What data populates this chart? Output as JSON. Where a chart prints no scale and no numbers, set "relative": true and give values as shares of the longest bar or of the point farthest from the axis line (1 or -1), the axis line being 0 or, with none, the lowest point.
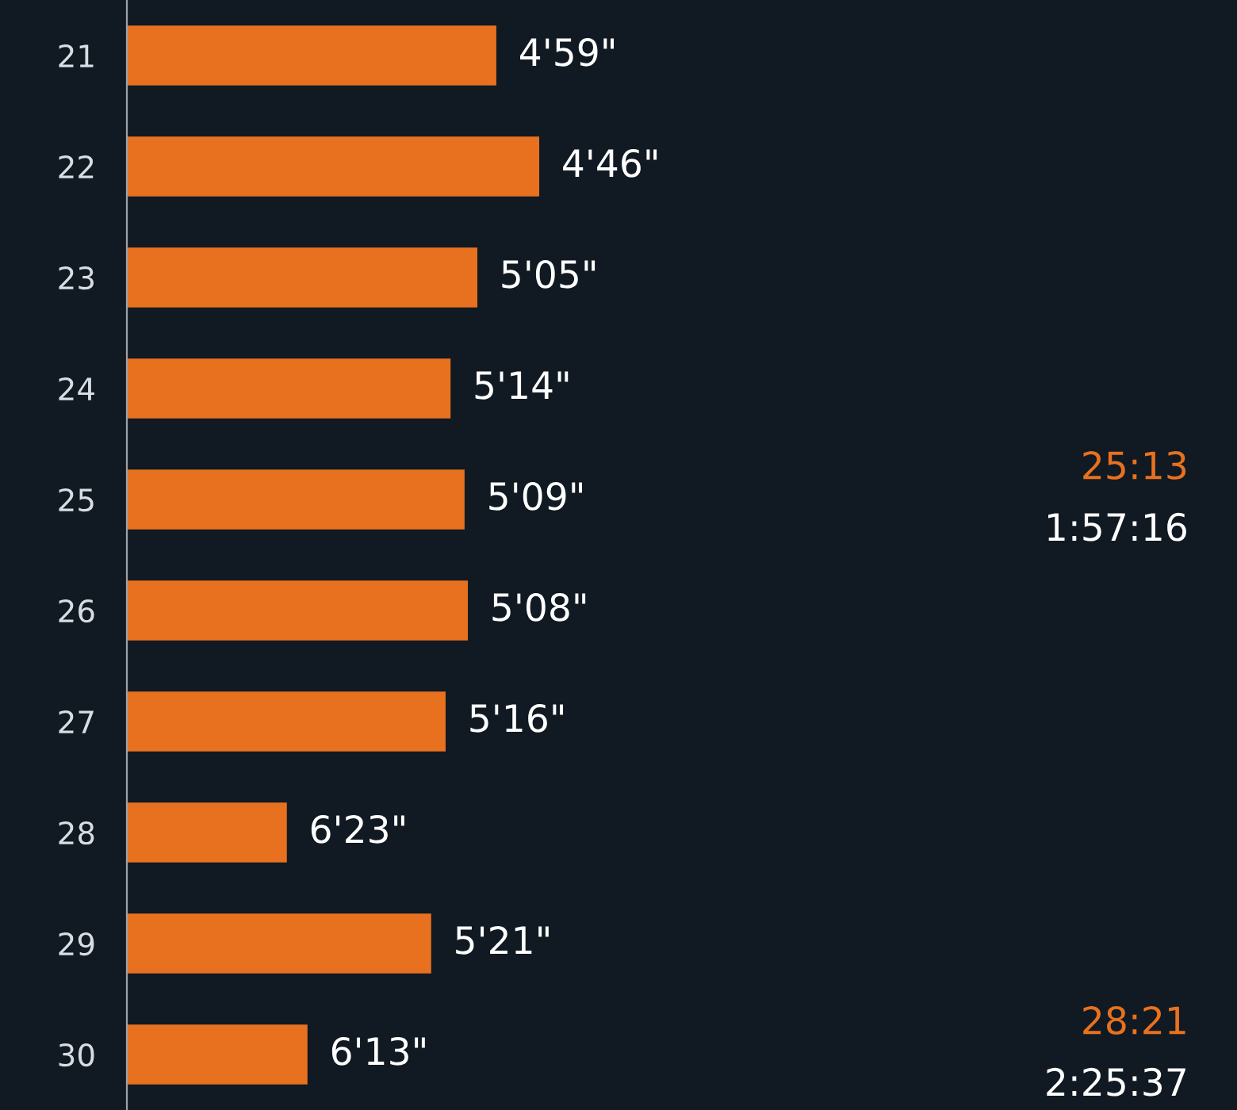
{
  "chart_data": {
    "type": "bar",
    "orientation": "horizontal",
    "relative": true,
    "categories": [
      "21",
      "22",
      "23",
      "24",
      "25",
      "26",
      "27",
      "28",
      "29",
      "30"
    ],
    "values": [
      0.896,
      1,
      0.85,
      0.785,
      0.819,
      0.827,
      0.773,
      0.388,
      0.738,
      0.438
    ],
    "color": "#e8711f",
    "annotations": [
      "4'59\"",
      "4'46\"",
      "5'05\"",
      "5'14\"",
      "5'09\"",
      "5'08\"",
      "5'16\"",
      "6'23\"",
      "5'21\"",
      "6'13\"",
      "25:13",
      "1:57:16",
      "28:21",
      "2:25:37"
    ],
    "grid": false,
    "legend": false
  }
}
